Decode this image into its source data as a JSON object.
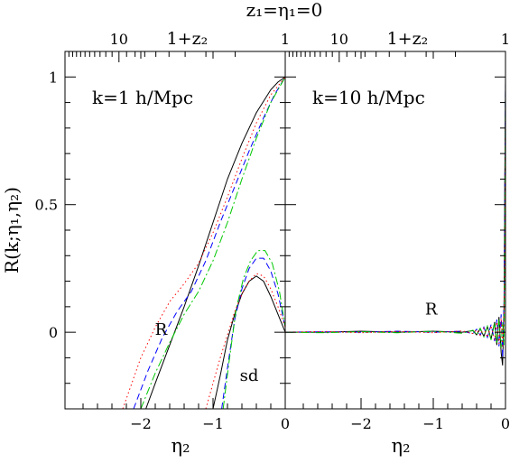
{
  "figure": {
    "top_title": "z₁=η₁=0",
    "ylabel": "R(k;η₁,η₂)"
  },
  "chart_data": [
    {
      "type": "line",
      "panel": "left",
      "annotation": "k=1 h/Mpc",
      "xlabel": "η₂",
      "ylabel": "R(k;η₁,η₂)",
      "top_axis_label": "1+z₂",
      "top_axis_ticks": [
        {
          "value": 10,
          "label": "10"
        },
        {
          "value": 1,
          "label": "1"
        }
      ],
      "xlim": [
        -3.05,
        0
      ],
      "ylim": [
        -0.3,
        1.1
      ],
      "xticks": [
        {
          "value": -2,
          "label": "−2"
        },
        {
          "value": -1,
          "label": "−1"
        },
        {
          "value": 0,
          "label": "0"
        }
      ],
      "yticks": [
        {
          "value": 0,
          "label": "0"
        },
        {
          "value": 0.5,
          "label": "0.5"
        },
        {
          "value": 1,
          "label": "1"
        }
      ],
      "text_labels": [
        {
          "text": "R",
          "x": -1.72,
          "y": -0.01
        },
        {
          "text": "sd",
          "x": -0.5,
          "y": -0.19
        }
      ],
      "series": [
        {
          "group": "R",
          "style": "solid",
          "color": "#000000",
          "x": [
            -1.93,
            -1.8,
            -1.6,
            -1.4,
            -1.2,
            -1.0,
            -0.8,
            -0.6,
            -0.4,
            -0.2,
            -0.1,
            0
          ],
          "y": [
            -0.3,
            -0.2,
            -0.05,
            0.1,
            0.26,
            0.43,
            0.6,
            0.74,
            0.86,
            0.95,
            0.98,
            1.0
          ]
        },
        {
          "group": "R",
          "style": "dashed",
          "color": "#0000ff",
          "x": [
            -2.1,
            -1.9,
            -1.7,
            -1.5,
            -1.3,
            -1.1,
            -0.9,
            -0.7,
            -0.5,
            -0.3,
            -0.15,
            0
          ],
          "y": [
            -0.3,
            -0.15,
            -0.02,
            0.08,
            0.16,
            0.28,
            0.43,
            0.57,
            0.71,
            0.84,
            0.93,
            1.0
          ]
        },
        {
          "group": "R",
          "style": "dotdash",
          "color": "#00c800",
          "x": [
            -2.0,
            -1.8,
            -1.6,
            -1.4,
            -1.2,
            -1.0,
            -0.8,
            -0.6,
            -0.4,
            -0.2,
            0
          ],
          "y": [
            -0.3,
            -0.16,
            -0.04,
            0.07,
            0.16,
            0.28,
            0.43,
            0.6,
            0.76,
            0.9,
            1.0
          ]
        },
        {
          "group": "R",
          "style": "dotted",
          "color": "#ff0000",
          "x": [
            -2.25,
            -2.0,
            -1.8,
            -1.6,
            -1.4,
            -1.2,
            -1.0,
            -0.8,
            -0.6,
            -0.4,
            -0.2,
            0
          ],
          "y": [
            -0.3,
            -0.1,
            0.02,
            0.12,
            0.19,
            0.27,
            0.39,
            0.53,
            0.68,
            0.82,
            0.93,
            1.0
          ]
        },
        {
          "group": "sd",
          "style": "solid",
          "color": "#000000",
          "x": [
            -1.0,
            -0.9,
            -0.8,
            -0.7,
            -0.6,
            -0.5,
            -0.4,
            -0.3,
            -0.2,
            -0.1,
            0
          ],
          "y": [
            -0.3,
            -0.17,
            -0.03,
            0.07,
            0.15,
            0.2,
            0.22,
            0.2,
            0.14,
            0.07,
            0.0
          ]
        },
        {
          "group": "sd",
          "style": "dashed",
          "color": "#0000ff",
          "x": [
            -0.88,
            -0.8,
            -0.7,
            -0.6,
            -0.5,
            -0.4,
            -0.3,
            -0.2,
            -0.1,
            0
          ],
          "y": [
            -0.3,
            -0.14,
            0.05,
            0.17,
            0.25,
            0.29,
            0.29,
            0.24,
            0.15,
            0.02
          ]
        },
        {
          "group": "sd",
          "style": "dotdash",
          "color": "#00c800",
          "x": [
            -0.86,
            -0.78,
            -0.68,
            -0.58,
            -0.48,
            -0.38,
            -0.28,
            -0.18,
            -0.08,
            0
          ],
          "y": [
            -0.3,
            -0.12,
            0.09,
            0.21,
            0.28,
            0.32,
            0.32,
            0.27,
            0.16,
            0.02
          ]
        },
        {
          "group": "sd",
          "style": "dotted",
          "color": "#ff0000",
          "x": [
            -1.1,
            -1.0,
            -0.9,
            -0.8,
            -0.7,
            -0.6,
            -0.5,
            -0.4,
            -0.3,
            -0.2,
            -0.1,
            0
          ],
          "y": [
            -0.3,
            -0.2,
            -0.1,
            -0.01,
            0.08,
            0.15,
            0.2,
            0.23,
            0.22,
            0.17,
            0.1,
            0.02
          ]
        }
      ]
    },
    {
      "type": "line",
      "panel": "right",
      "annotation": "k=10 h/Mpc",
      "xlabel": "η₂",
      "top_axis_label": "1+z₂",
      "top_axis_ticks": [
        {
          "value": 10,
          "label": "10"
        },
        {
          "value": 1,
          "label": "1"
        }
      ],
      "xlim": [
        -3.05,
        0
      ],
      "ylim": [
        -0.3,
        1.1
      ],
      "xticks": [
        {
          "value": -2,
          "label": "−2"
        },
        {
          "value": -1,
          "label": "−1"
        },
        {
          "value": 0,
          "label": "0"
        }
      ],
      "yticks": [
        {
          "value": 0,
          "label": "0"
        },
        {
          "value": 0.5,
          "label": "0.5"
        },
        {
          "value": 1,
          "label": "1"
        }
      ],
      "text_labels": [
        {
          "text": "R",
          "x": -1.03,
          "y": 0.07
        }
      ],
      "series": [
        {
          "style": "solid",
          "color": "#000000",
          "x": [
            -3.05,
            -2.5,
            -2.0,
            -1.5,
            -1.0,
            -0.6,
            -0.45,
            -0.4,
            -0.35,
            -0.3,
            -0.25,
            -0.2,
            -0.15,
            -0.12,
            -0.09,
            -0.06,
            -0.04,
            -0.02,
            -0.01,
            0
          ],
          "y": [
            0.0,
            0.0,
            0.004,
            0.0,
            0.004,
            0.0,
            0.006,
            -0.01,
            0.014,
            -0.016,
            0.022,
            -0.026,
            0.04,
            -0.05,
            0.06,
            -0.08,
            -0.13,
            0.1,
            0.55,
            1.0
          ]
        },
        {
          "style": "dashed",
          "color": "#0000ff",
          "x": [
            -3.05,
            -2.5,
            -2.0,
            -1.5,
            -1.0,
            -0.6,
            -0.45,
            -0.4,
            -0.35,
            -0.3,
            -0.25,
            -0.2,
            -0.15,
            -0.12,
            -0.09,
            -0.06,
            -0.04,
            -0.02,
            -0.01,
            0
          ],
          "y": [
            0.0,
            0.002,
            0.0,
            0.004,
            0.0,
            0.004,
            -0.006,
            0.012,
            -0.012,
            0.02,
            -0.02,
            0.03,
            -0.035,
            0.05,
            -0.055,
            0.07,
            -0.1,
            0.12,
            0.5,
            0.98
          ]
        },
        {
          "style": "dotdash",
          "color": "#00c800",
          "x": [
            -3.05,
            -2.5,
            -2.0,
            -1.5,
            -1.0,
            -0.6,
            -0.45,
            -0.4,
            -0.35,
            -0.3,
            -0.25,
            -0.2,
            -0.15,
            -0.12,
            -0.09,
            -0.06,
            -0.04,
            -0.02,
            -0.01,
            0
          ],
          "y": [
            0.0,
            -0.002,
            0.002,
            -0.002,
            0.004,
            -0.004,
            0.008,
            -0.01,
            0.016,
            -0.018,
            0.024,
            -0.03,
            0.036,
            -0.045,
            0.05,
            -0.06,
            0.04,
            -0.05,
            0.4,
            0.95
          ]
        },
        {
          "style": "dotted",
          "color": "#ff0000",
          "x": [
            -3.05,
            -2.5,
            -2.0,
            -1.5,
            -1.0,
            -0.6,
            -0.45,
            -0.4,
            -0.35,
            -0.3,
            -0.25,
            -0.2,
            -0.15,
            -0.12,
            -0.09,
            -0.06,
            -0.04,
            -0.02,
            -0.01,
            0
          ],
          "y": [
            0.0,
            0.003,
            -0.002,
            0.003,
            -0.002,
            0.005,
            -0.005,
            0.01,
            -0.012,
            0.016,
            -0.02,
            0.026,
            -0.03,
            0.04,
            -0.045,
            0.055,
            -0.06,
            0.08,
            0.3,
            0.9
          ]
        }
      ]
    }
  ]
}
